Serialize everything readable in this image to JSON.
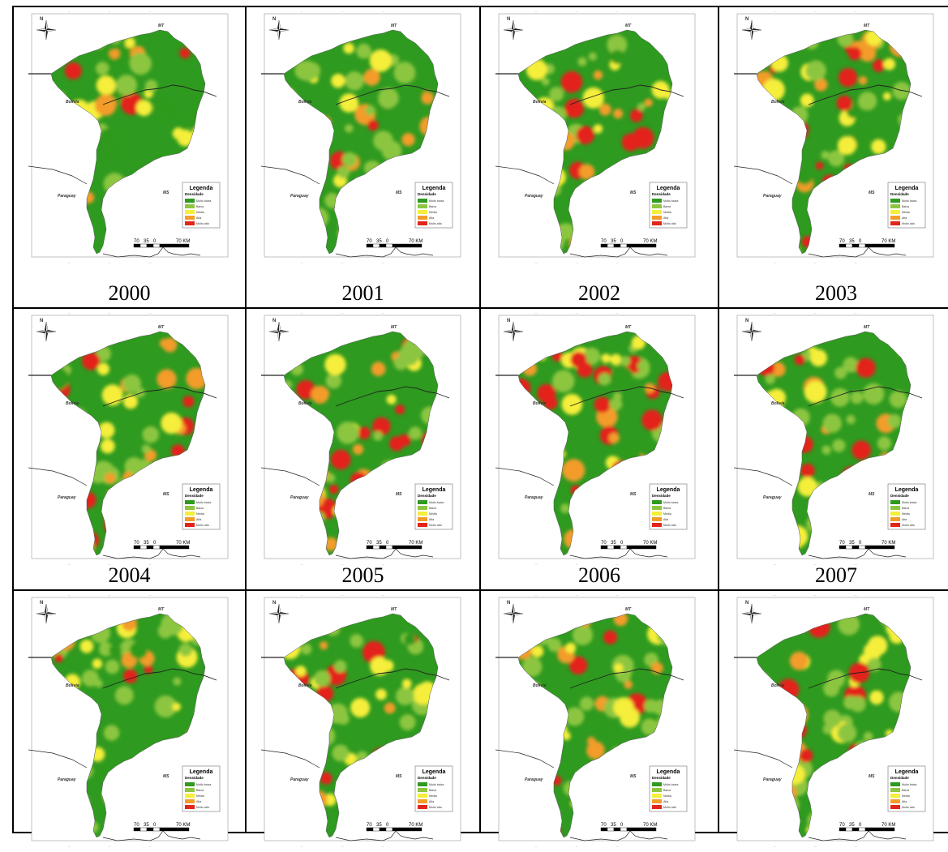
{
  "years": [
    "2000",
    "2001",
    "2002",
    "2003",
    "2004",
    "2005",
    "2006",
    "2007",
    "",
    "",
    "",
    ""
  ],
  "map_labels": {
    "north": "N",
    "mt": "MT",
    "ms": "MS",
    "bolivia": "Bolivia",
    "paraguay": "Paraguay"
  },
  "legend": {
    "title": "Legenda",
    "subtitle": "Densidade",
    "items": [
      {
        "label": "Muito baixa",
        "color": "#2e9a1f"
      },
      {
        "label": "Baixa",
        "color": "#8cc63f"
      },
      {
        "label": "Média",
        "color": "#f5ee3a"
      },
      {
        "label": "Alta",
        "color": "#f39c2a"
      },
      {
        "label": "Muito alta",
        "color": "#e3241b"
      }
    ]
  },
  "scale_bar": {
    "t1": "70",
    "t2": "35",
    "t3": "0",
    "t4": "70 KM"
  },
  "colors": {
    "very_low": "#2e9a1f",
    "low": "#8cc63f",
    "medium": "#f5ee3a",
    "high": "#f39c2a",
    "very_high": "#e3241b"
  }
}
